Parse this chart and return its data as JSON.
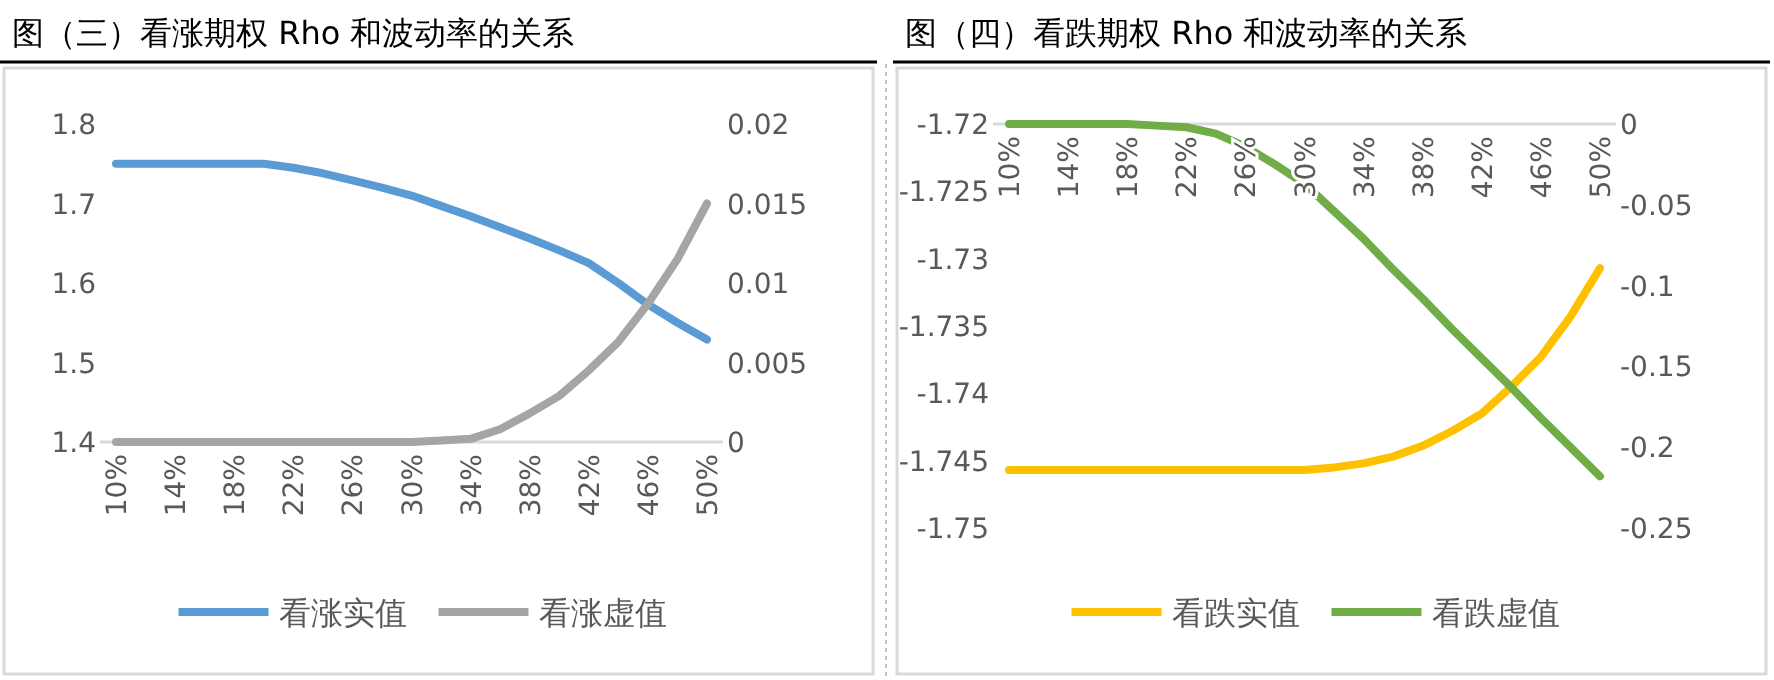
{
  "chart_data": [
    {
      "type": "line",
      "title": "图（三）看涨期权 Rho 和波动率的关系",
      "categories": [
        "10%",
        null,
        "14%",
        null,
        "18%",
        null,
        "22%",
        null,
        "26%",
        null,
        "30%",
        null,
        "34%",
        null,
        "38%",
        null,
        "42%",
        null,
        "46%",
        null,
        "50%"
      ],
      "series": [
        {
          "name": "看涨实值",
          "color": "#5b9bd5",
          "values": [
            1.75,
            1.75,
            1.75,
            1.75,
            1.75,
            1.75,
            1.745,
            1.738,
            1.729,
            1.72,
            1.71,
            1.697,
            1.684,
            1.67,
            1.656,
            1.641,
            1.625,
            1.6,
            1.573,
            1.55,
            1.529
          ]
        },
        {
          "name": "看涨虚值",
          "color": "#a5a5a5",
          "axis": "y2",
          "values": [
            0,
            0,
            0,
            0,
            0,
            0,
            0,
            0,
            0,
            0,
            0,
            0.0001,
            0.0002,
            0.0008,
            0.0018,
            0.0029,
            0.0045,
            0.0063,
            0.0087,
            0.0115,
            0.015
          ]
        }
      ],
      "ylim": [
        1.4,
        1.8
      ],
      "yticks": [
        1.4,
        1.5,
        1.6,
        1.7,
        1.8
      ],
      "y2lim": [
        0,
        0.02
      ],
      "y2ticks": [
        0,
        0.005,
        0.01,
        0.015,
        0.02
      ],
      "legend": "bottom",
      "grid": false
    },
    {
      "type": "line",
      "title": "图（四）看跌期权 Rho 和波动率的关系",
      "categories": [
        "10%",
        null,
        "14%",
        null,
        "18%",
        null,
        "22%",
        null,
        "26%",
        null,
        "30%",
        null,
        "34%",
        null,
        "38%",
        null,
        "42%",
        null,
        "46%",
        null,
        "50%"
      ],
      "series": [
        {
          "name": "看跌实值",
          "color": "#ffc000",
          "values": [
            -1.7457,
            -1.7457,
            -1.7457,
            -1.7457,
            -1.7457,
            -1.7457,
            -1.7457,
            -1.7457,
            -1.7457,
            -1.7457,
            -1.7457,
            -1.7455,
            -1.7452,
            -1.7447,
            -1.7439,
            -1.7428,
            -1.7415,
            -1.7395,
            -1.7373,
            -1.7343,
            -1.7307
          ]
        },
        {
          "name": "看跌虚值",
          "color": "#70ad47",
          "axis": "y2",
          "values": [
            0,
            0,
            0,
            0,
            0,
            -0.001,
            -0.002,
            -0.006,
            -0.014,
            -0.025,
            -0.037,
            -0.054,
            -0.071,
            -0.09,
            -0.108,
            -0.127,
            -0.145,
            -0.163,
            -0.182,
            -0.2,
            -0.218
          ]
        }
      ],
      "ylim": [
        -1.75,
        -1.72
      ],
      "yticks": [
        -1.75,
        -1.745,
        -1.74,
        -1.735,
        -1.73,
        -1.725,
        -1.72
      ],
      "y2lim": [
        -0.25,
        0
      ],
      "y2ticks": [
        -0.25,
        -0.2,
        -0.15,
        -0.1,
        -0.05,
        0
      ],
      "legend": "bottom",
      "grid": false
    }
  ]
}
